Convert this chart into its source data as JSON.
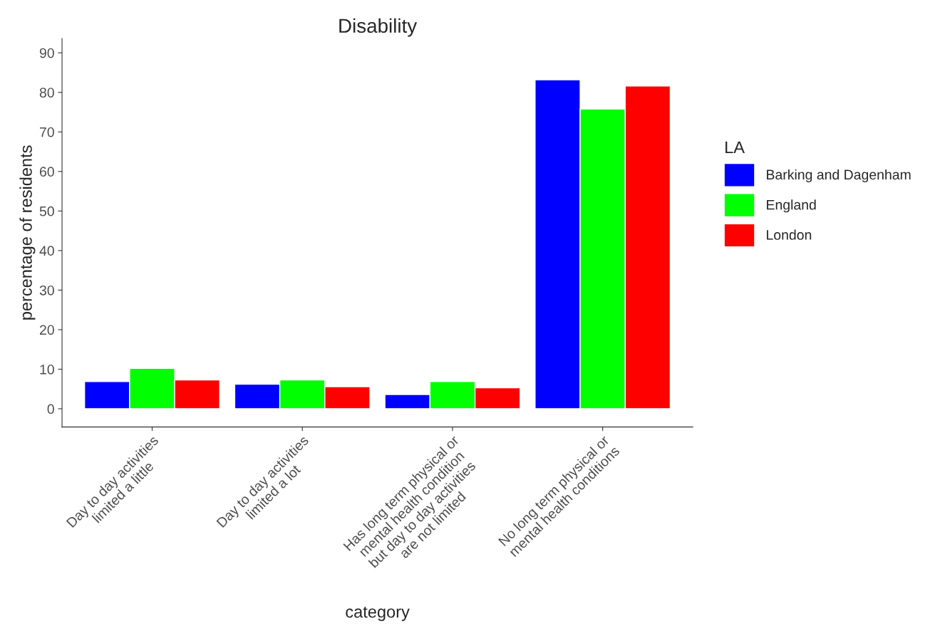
{
  "chart_data": {
    "type": "bar",
    "title": "Disability",
    "xlabel": "category",
    "ylabel": "percentage of residents",
    "legend_title": "LA",
    "categories": [
      "Day to day activities\nlimited a little",
      "Day to day activities\nlimited a lot",
      "Has long term physical or\nmental health condition\nbut day to day activities\nare not limited",
      "No long term physical or\nmental health conditions"
    ],
    "series": [
      {
        "name": "Barking and Dagenham",
        "color": "#0000ff",
        "values": [
          6.9,
          6.2,
          3.6,
          83.2
        ]
      },
      {
        "name": "England",
        "color": "#00ff00",
        "values": [
          10.2,
          7.3,
          6.9,
          75.8
        ]
      },
      {
        "name": "London",
        "color": "#ff0000",
        "values": [
          7.3,
          5.6,
          5.3,
          81.6
        ]
      }
    ],
    "ylim": [
      -4.6,
      93.6
    ],
    "yticks": [
      0,
      10,
      20,
      30,
      40,
      50,
      60,
      70,
      80,
      90
    ],
    "grid": false,
    "legend": "right"
  }
}
